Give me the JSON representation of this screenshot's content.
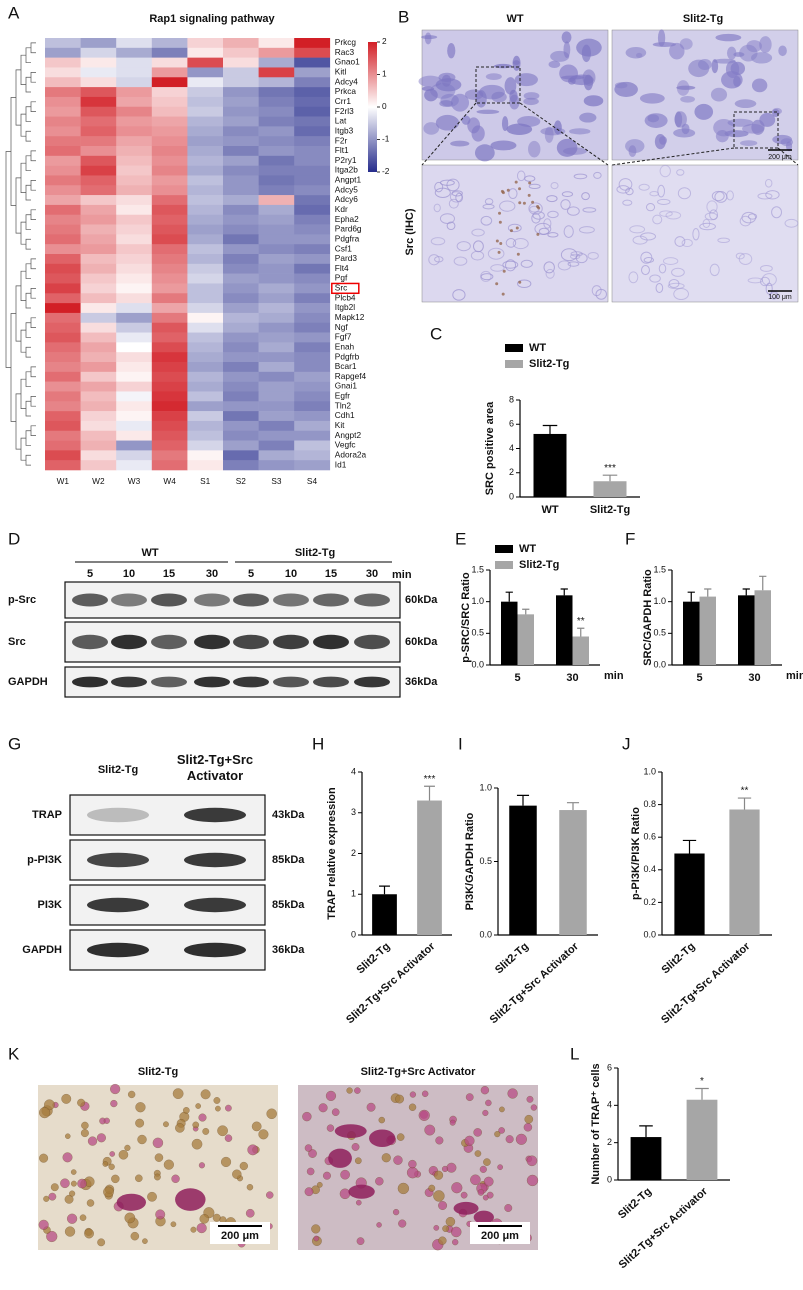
{
  "chart_data": [
    {
      "panel": "A",
      "type": "heatmap",
      "title": "Rap1 signaling pathway",
      "columns": [
        "W1",
        "W2",
        "W3",
        "W4",
        "S1",
        "S2",
        "S3",
        "S4"
      ],
      "rows": [
        "Prkcg",
        "Rac3",
        "Gnao1",
        "Kitl",
        "Adcy4",
        "Prkca",
        "Crr1",
        "F2rl3",
        "Lat",
        "Itgb3",
        "F2r",
        "Flt1",
        "P2ry1",
        "Itga2b",
        "Angpt1",
        "Adcy5",
        "Adcy6",
        "Kdr",
        "Epha2",
        "Pard6g",
        "Pdgfra",
        "Csf1",
        "Pard3",
        "Flt4",
        "Pgf",
        "Src",
        "Plcb4",
        "Itgb2l",
        "Mapk12",
        "Ngf",
        "Fgf7",
        "Enah",
        "Pdgfrb",
        "Bcar1",
        "Rapgef4",
        "Gnai1",
        "Egfr",
        "Tln2",
        "Cdh1",
        "Kit",
        "Angpt2",
        "Vegfc",
        "Adora2a",
        "Id1"
      ],
      "values": [
        [
          -0.6,
          -0.9,
          -0.3,
          -0.7,
          0.4,
          0.7,
          0.2,
          2.0
        ],
        [
          -0.9,
          -0.4,
          -0.8,
          -1.2,
          0.2,
          0.5,
          0.9,
          1.6
        ],
        [
          0.5,
          0.2,
          -0.3,
          0.3,
          1.6,
          0.3,
          -0.8,
          -1.6
        ],
        [
          0.3,
          -0.2,
          -0.3,
          0.9,
          -1.0,
          -0.5,
          1.7,
          -0.9
        ],
        [
          0.6,
          0.3,
          -0.4,
          2.0,
          -0.2,
          -0.5,
          -0.7,
          -1.2
        ],
        [
          1.2,
          1.5,
          0.9,
          0.4,
          -0.5,
          -1.0,
          -1.3,
          -1.5
        ],
        [
          1.0,
          1.8,
          0.8,
          0.5,
          -0.6,
          -0.9,
          -1.2,
          -1.4
        ],
        [
          0.9,
          1.5,
          1.1,
          0.6,
          -0.5,
          -1.0,
          -1.1,
          -1.5
        ],
        [
          1.1,
          1.3,
          0.9,
          0.8,
          -0.7,
          -0.9,
          -1.2,
          -1.3
        ],
        [
          1.0,
          1.4,
          1.0,
          0.9,
          -0.8,
          -1.1,
          -1.0,
          -1.4
        ],
        [
          1.2,
          1.2,
          0.8,
          1.0,
          -0.9,
          -1.0,
          -1.1,
          -1.2
        ],
        [
          1.3,
          1.0,
          0.7,
          1.1,
          -0.8,
          -1.2,
          -1.0,
          -1.1
        ],
        [
          0.9,
          1.5,
          0.6,
          1.0,
          -0.7,
          -0.9,
          -1.3,
          -1.1
        ],
        [
          1.0,
          1.7,
          0.5,
          1.1,
          -0.8,
          -1.1,
          -1.2,
          -1.2
        ],
        [
          1.2,
          1.4,
          0.6,
          0.9,
          -0.6,
          -1.0,
          -1.3,
          -1.2
        ],
        [
          1.0,
          1.3,
          0.7,
          1.0,
          -0.7,
          -1.0,
          -1.2,
          -1.1
        ],
        [
          0.8,
          0.5,
          0.3,
          1.3,
          -0.6,
          -0.8,
          0.7,
          -1.3
        ],
        [
          1.3,
          0.8,
          0.2,
          1.5,
          -0.7,
          -1.1,
          -0.8,
          -1.4
        ],
        [
          1.1,
          0.9,
          0.5,
          1.4,
          -0.8,
          -1.0,
          -0.9,
          -1.2
        ],
        [
          1.2,
          0.7,
          0.4,
          1.5,
          -0.9,
          -1.1,
          -1.0,
          -1.1
        ],
        [
          1.3,
          0.8,
          0.3,
          1.6,
          -0.8,
          -1.3,
          -1.0,
          -1.0
        ],
        [
          1.0,
          0.9,
          0.5,
          1.3,
          -0.6,
          -1.0,
          -1.1,
          -1.2
        ],
        [
          1.4,
          0.6,
          0.4,
          1.2,
          -0.7,
          -1.2,
          -0.9,
          -1.0
        ],
        [
          1.6,
          0.7,
          0.3,
          1.1,
          -0.5,
          -1.1,
          -1.0,
          -1.3
        ],
        [
          1.5,
          0.5,
          0.2,
          1.0,
          -0.4,
          -0.9,
          -1.0,
          -1.1
        ],
        [
          1.7,
          0.4,
          0.1,
          0.9,
          -0.6,
          -1.0,
          -0.8,
          -1.0
        ],
        [
          1.4,
          0.6,
          0.3,
          1.2,
          -0.6,
          -1.1,
          -0.9,
          -1.2
        ],
        [
          2.0,
          0.2,
          -0.3,
          0.8,
          -0.4,
          -0.9,
          -0.7,
          -1.0
        ],
        [
          1.3,
          -0.5,
          -0.9,
          1.2,
          0.1,
          -0.7,
          -0.8,
          -1.1
        ],
        [
          1.4,
          0.3,
          -0.5,
          1.5,
          -0.3,
          -0.8,
          -1.0,
          -1.2
        ],
        [
          1.5,
          0.6,
          -0.2,
          1.4,
          -0.6,
          -1.0,
          -0.9,
          -1.0
        ],
        [
          1.3,
          0.8,
          0.0,
          1.6,
          -0.7,
          -1.1,
          -0.8,
          -1.2
        ],
        [
          1.2,
          0.7,
          0.3,
          1.8,
          -0.8,
          -1.0,
          -1.0,
          -1.1
        ],
        [
          1.1,
          0.9,
          0.2,
          1.7,
          -0.9,
          -1.2,
          -0.8,
          -1.1
        ],
        [
          1.3,
          0.5,
          0.1,
          1.6,
          -0.7,
          -1.0,
          -1.1,
          -0.9
        ],
        [
          1.0,
          0.8,
          0.4,
          1.7,
          -0.8,
          -1.1,
          -0.9,
          -1.0
        ],
        [
          1.2,
          0.6,
          -0.1,
          1.8,
          -0.6,
          -1.2,
          -0.9,
          -1.1
        ],
        [
          1.1,
          0.7,
          0.2,
          1.9,
          -0.9,
          -1.0,
          -1.0,
          -1.2
        ],
        [
          1.4,
          0.4,
          0.1,
          1.7,
          -0.5,
          -1.3,
          -0.9,
          -1.0
        ],
        [
          1.5,
          0.3,
          -0.2,
          1.6,
          -0.7,
          -1.0,
          -1.2,
          -0.8
        ],
        [
          1.2,
          0.6,
          0.2,
          1.5,
          -0.6,
          -1.1,
          -1.0,
          -1.0
        ],
        [
          1.3,
          0.7,
          -1.0,
          1.4,
          -0.4,
          -0.9,
          -1.2,
          -0.6
        ],
        [
          1.6,
          0.3,
          -0.4,
          1.2,
          0.1,
          -1.4,
          -0.8,
          -0.7
        ],
        [
          1.4,
          0.5,
          -0.2,
          1.3,
          0.2,
          -1.2,
          -1.0,
          -0.9
        ]
      ],
      "colorbar": {
        "lim": [
          -2,
          2
        ],
        "ticks": [
          2,
          1,
          0,
          -1,
          -2
        ],
        "colors": [
          "#262c8c",
          "#ffffff",
          "#d21f26"
        ]
      },
      "highlight": "Src"
    },
    {
      "panel": "C",
      "type": "bar",
      "ylabel": "SRC positive  area",
      "categories": [
        "WT",
        "Slit2-Tg"
      ],
      "values": [
        5.2,
        1.3
      ],
      "errors": [
        0.7,
        0.5
      ],
      "colors": [
        "#000000",
        "#a6a6a6"
      ],
      "significance": [
        null,
        "***"
      ],
      "legend": [
        {
          "name": "WT",
          "color": "#000000"
        },
        {
          "name": "Slit2-Tg",
          "color": "#a6a6a6"
        }
      ],
      "ylim": [
        0,
        8
      ],
      "yticks": [
        0,
        2,
        4,
        6,
        8
      ]
    },
    {
      "panel": "E",
      "type": "grouped-bar",
      "ylabel": "p-SRC/SRC Ratio",
      "categories": [
        "5",
        "30"
      ],
      "xunit": "min",
      "series": [
        {
          "name": "WT",
          "color": "#000000",
          "values": [
            1.0,
            1.1
          ],
          "errors": [
            0.15,
            0.1
          ]
        },
        {
          "name": "Slit2-Tg",
          "color": "#a6a6a6",
          "values": [
            0.8,
            0.45
          ],
          "errors": [
            0.08,
            0.13
          ],
          "significance": [
            null,
            "**"
          ]
        }
      ],
      "ylim": [
        0,
        1.5
      ],
      "yticks": [
        {
          "value": 0,
          "label": "0.0"
        },
        {
          "value": 0.5,
          "label": "0.5"
        },
        {
          "value": 1,
          "label": "1.0"
        },
        {
          "value": 1.5,
          "label": "1.5"
        }
      ]
    },
    {
      "panel": "F",
      "type": "grouped-bar",
      "ylabel": "SRC/GAPDH Ratio",
      "categories": [
        "5",
        "30"
      ],
      "xunit": "min",
      "series": [
        {
          "color": "#000000",
          "values": [
            1.0,
            1.1
          ],
          "errors": [
            0.15,
            0.1
          ]
        },
        {
          "color": "#a6a6a6",
          "values": [
            1.08,
            1.18
          ],
          "errors": [
            0.12,
            0.22
          ]
        }
      ],
      "ylim": [
        0,
        1.5
      ],
      "yticks": [
        {
          "value": 0,
          "label": "0.0"
        },
        {
          "value": 0.5,
          "label": "0.5"
        },
        {
          "value": 1,
          "label": "1.0"
        },
        {
          "value": 1.5,
          "label": "1.5"
        }
      ]
    },
    {
      "panel": "H",
      "type": "bar",
      "ylabel": "TRAP relative expression",
      "categories": [
        "Slit2-Tg",
        "Slit2-Tg+Src Activator"
      ],
      "values": [
        1.0,
        3.3
      ],
      "errors": [
        0.2,
        0.35
      ],
      "colors": [
        "#000000",
        "#a6a6a6"
      ],
      "significance": [
        null,
        "***"
      ],
      "ylim": [
        0,
        4
      ],
      "yticks": [
        0,
        1,
        2,
        3,
        4
      ]
    },
    {
      "panel": "I",
      "type": "bar",
      "ylabel": "PI3K/GAPDH Ratio",
      "categories": [
        "Slit2-Tg",
        "Slit2-Tg+Src Activator"
      ],
      "values": [
        0.88,
        0.85
      ],
      "errors": [
        0.07,
        0.05
      ],
      "colors": [
        "#000000",
        "#a6a6a6"
      ],
      "ylim": [
        0,
        1
      ],
      "yticks": [
        {
          "value": 0,
          "label": "0.0"
        },
        {
          "value": 0.5,
          "label": "0.5"
        },
        {
          "value": 1,
          "label": "1.0"
        }
      ]
    },
    {
      "panel": "J",
      "type": "bar",
      "ylabel": "p-PI3K/PI3K Ratio",
      "categories": [
        "Slit2-Tg",
        "Slit2-Tg+Src Activator"
      ],
      "values": [
        0.5,
        0.77
      ],
      "errors": [
        0.08,
        0.07
      ],
      "colors": [
        "#000000",
        "#a6a6a6"
      ],
      "significance": [
        null,
        "**"
      ],
      "ylim": [
        0,
        1
      ],
      "yticks": [
        {
          "value": 0,
          "label": "0.0"
        },
        {
          "value": 0.2,
          "label": "0.2"
        },
        {
          "value": 0.4,
          "label": "0.4"
        },
        {
          "value": 0.6,
          "label": "0.6"
        },
        {
          "value": 0.8,
          "label": "0.8"
        },
        {
          "value": 1,
          "label": "1.0"
        }
      ]
    },
    {
      "panel": "L",
      "type": "bar",
      "ylabel": "Number of TRAP⁺ cells",
      "categories": [
        "Slit2-Tg",
        "Slit2-Tg+Src Activator"
      ],
      "values": [
        2.3,
        4.3
      ],
      "errors": [
        0.6,
        0.6
      ],
      "colors": [
        "#000000",
        "#a6a6a6"
      ],
      "significance": [
        null,
        "*"
      ],
      "ylim": [
        0,
        6
      ],
      "yticks": [
        0,
        2,
        4,
        6
      ]
    }
  ],
  "panels": {
    "B": {
      "letter": "B",
      "columns": [
        "WT",
        "Slit2-Tg"
      ],
      "stain": "Src (IHC)",
      "scale_bars": [
        "200 μm",
        "100 μm"
      ]
    },
    "D": {
      "letter": "D",
      "groups": [
        "WT",
        "Slit2-Tg"
      ],
      "times": [
        "5",
        "10",
        "15",
        "30",
        "5",
        "10",
        "15",
        "30"
      ],
      "time_unit": "min",
      "rows": [
        {
          "name": "p-Src",
          "size": "60kDa"
        },
        {
          "name": "Src",
          "size": "60kDa"
        },
        {
          "name": "GAPDH",
          "size": "36kDa"
        }
      ]
    },
    "G": {
      "letter": "G",
      "lanes": [
        "Slit2-Tg",
        "Slit2-Tg+Src Activator"
      ],
      "rows": [
        {
          "name": "TRAP",
          "size": "43kDa"
        },
        {
          "name": "p-PI3K",
          "size": "85kDa"
        },
        {
          "name": "PI3K",
          "size": "85kDa"
        },
        {
          "name": "GAPDH",
          "size": "36kDa"
        }
      ]
    },
    "K": {
      "letter": "K",
      "columns": [
        "Slit2-Tg",
        "Slit2-Tg+Src Activator"
      ],
      "scale_bars": [
        "200 μm",
        "200 μm"
      ]
    }
  }
}
